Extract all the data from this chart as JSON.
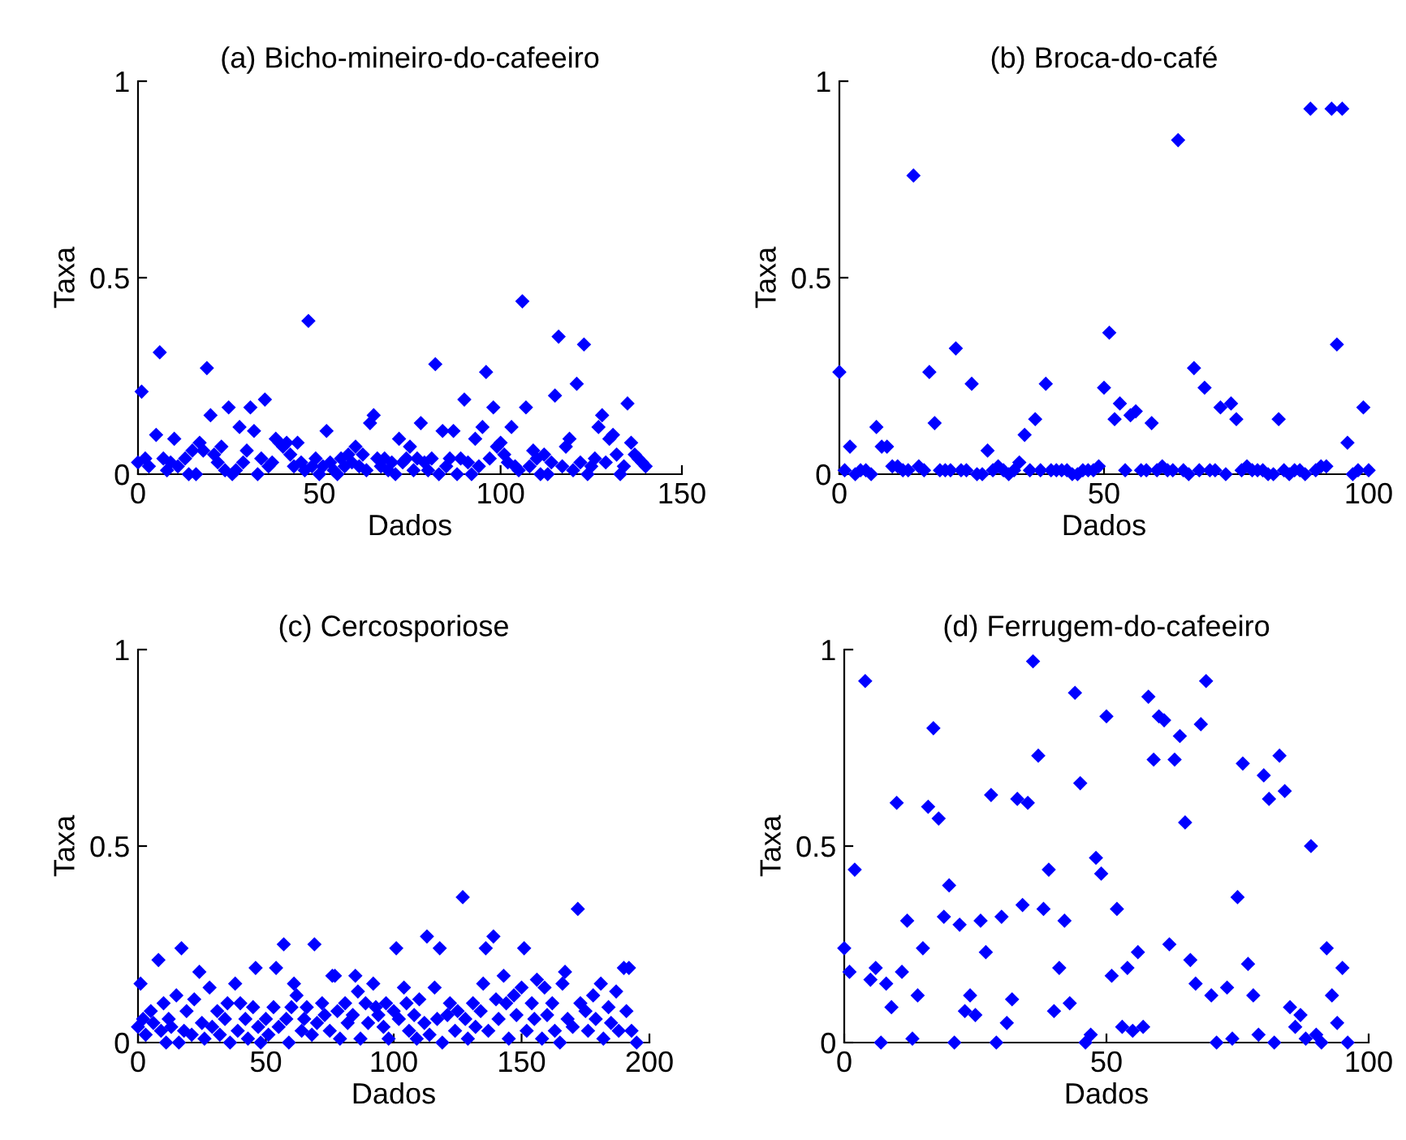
{
  "chart_data": [
    {
      "type": "scatter",
      "title": "(a) Bicho-mineiro-do-cafeeiro",
      "xlabel": "Dados",
      "ylabel": "Taxa",
      "color": "#0000ff",
      "marker": "diamond",
      "xlim": [
        0,
        150
      ],
      "ylim": [
        0,
        1
      ],
      "xticks": [
        0,
        50,
        100,
        150
      ],
      "yticks": [
        0,
        0.5,
        1
      ],
      "x": [
        0,
        1,
        2,
        3,
        5,
        6,
        7,
        8,
        9,
        10,
        11,
        13,
        14,
        15,
        16,
        17,
        18,
        19,
        20,
        21,
        22,
        23,
        24,
        25,
        26,
        27,
        28,
        29,
        30,
        31,
        32,
        33,
        34,
        35,
        36,
        37,
        38,
        39,
        40,
        41,
        42,
        43,
        44,
        45,
        46,
        47,
        48,
        49,
        50,
        51,
        52,
        53,
        54,
        55,
        56,
        57,
        58,
        59,
        60,
        61,
        62,
        63,
        64,
        65,
        66,
        67,
        68,
        69,
        70,
        71,
        72,
        73,
        74,
        75,
        76,
        77,
        78,
        79,
        80,
        81,
        82,
        83,
        84,
        85,
        86,
        87,
        88,
        89,
        90,
        91,
        92,
        93,
        94,
        95,
        96,
        97,
        98,
        99,
        100,
        101,
        102,
        103,
        104,
        105,
        106,
        107,
        108,
        109,
        110,
        111,
        112,
        113,
        114,
        115,
        116,
        117,
        118,
        119,
        120,
        121,
        122,
        123,
        124,
        125,
        126,
        127,
        128,
        129,
        130,
        131,
        132,
        133,
        134,
        135,
        136,
        137,
        138,
        139,
        140
      ],
      "values": [
        0.03,
        0.21,
        0.04,
        0.02,
        0.1,
        0.31,
        0.04,
        0.01,
        0.03,
        0.09,
        0.02,
        0.04,
        0.0,
        0.06,
        0.0,
        0.08,
        0.06,
        0.27,
        0.15,
        0.05,
        0.03,
        0.07,
        0.01,
        0.17,
        0.0,
        0.01,
        0.12,
        0.03,
        0.06,
        0.17,
        0.11,
        0.0,
        0.04,
        0.19,
        0.02,
        0.03,
        0.09,
        0.08,
        0.07,
        0.08,
        0.05,
        0.02,
        0.08,
        0.03,
        0.01,
        0.39,
        0.02,
        0.04,
        0.0,
        0.02,
        0.11,
        0.03,
        0.01,
        0.0,
        0.04,
        0.02,
        0.05,
        0.03,
        0.07,
        0.02,
        0.05,
        0.01,
        0.13,
        0.15,
        0.04,
        0.02,
        0.04,
        0.01,
        0.03,
        0.0,
        0.09,
        0.03,
        0.04,
        0.07,
        0.01,
        0.04,
        0.13,
        0.03,
        0.01,
        0.04,
        0.28,
        0.0,
        0.11,
        0.02,
        0.04,
        0.11,
        0.0,
        0.04,
        0.19,
        0.03,
        0.0,
        0.09,
        0.02,
        0.12,
        0.26,
        0.04,
        0.17,
        0.07,
        0.08,
        0.05,
        0.03,
        0.12,
        0.02,
        0.01,
        0.44,
        0.17,
        0.02,
        0.06,
        0.04,
        0.0,
        0.05,
        0.0,
        0.03,
        0.2,
        0.35,
        0.02,
        0.07,
        0.09,
        0.01,
        0.23,
        0.03,
        0.33,
        0.0,
        0.02,
        0.04,
        0.12,
        0.15,
        0.03,
        0.09,
        0.1,
        0.05,
        0.0,
        0.02,
        0.18,
        0.08,
        0.05,
        0.04,
        0.03,
        0.02
      ]
    },
    {
      "type": "scatter",
      "title": "(b) Broca-do-café",
      "xlabel": "Dados",
      "ylabel": "Taxa",
      "color": "#0000ff",
      "marker": "diamond",
      "xlim": [
        0,
        100
      ],
      "ylim": [
        0,
        1
      ],
      "xticks": [
        0,
        50,
        100
      ],
      "yticks": [
        0,
        0.5,
        1
      ],
      "x": [
        0,
        1,
        2,
        3,
        4,
        5,
        6,
        7,
        8,
        9,
        10,
        11,
        12,
        13,
        14,
        15,
        16,
        17,
        18,
        19,
        20,
        21,
        22,
        23,
        24,
        25,
        26,
        27,
        28,
        29,
        30,
        31,
        32,
        33,
        34,
        35,
        36,
        37,
        38,
        39,
        40,
        41,
        42,
        43,
        44,
        45,
        46,
        47,
        48,
        49,
        50,
        51,
        52,
        53,
        54,
        55,
        56,
        57,
        58,
        59,
        60,
        61,
        62,
        63,
        64,
        65,
        66,
        67,
        68,
        69,
        70,
        71,
        72,
        73,
        74,
        75,
        76,
        77,
        78,
        79,
        80,
        81,
        82,
        83,
        84,
        85,
        86,
        87,
        88,
        89,
        90,
        91,
        92,
        93,
        94,
        95,
        96,
        97,
        98,
        99,
        100
      ],
      "values": [
        0.26,
        0.01,
        0.07,
        0.0,
        0.01,
        0.01,
        0.0,
        0.12,
        0.07,
        0.07,
        0.02,
        0.02,
        0.01,
        0.01,
        0.76,
        0.02,
        0.01,
        0.26,
        0.13,
        0.01,
        0.01,
        0.01,
        0.32,
        0.01,
        0.01,
        0.23,
        0.0,
        0.0,
        0.06,
        0.01,
        0.02,
        0.01,
        0.0,
        0.01,
        0.03,
        0.1,
        0.01,
        0.14,
        0.01,
        0.23,
        0.01,
        0.01,
        0.01,
        0.01,
        0.0,
        0.0,
        0.01,
        0.01,
        0.01,
        0.02,
        0.22,
        0.36,
        0.14,
        0.18,
        0.01,
        0.15,
        0.16,
        0.01,
        0.01,
        0.13,
        0.01,
        0.02,
        0.01,
        0.01,
        0.85,
        0.01,
        0.0,
        0.27,
        0.01,
        0.22,
        0.01,
        0.01,
        0.17,
        0.0,
        0.18,
        0.14,
        0.01,
        0.02,
        0.01,
        0.01,
        0.01,
        0.0,
        0.0,
        0.14,
        0.01,
        0.0,
        0.01,
        0.01,
        0.0,
        0.93,
        0.01,
        0.02,
        0.02,
        0.93,
        0.33,
        0.93,
        0.08,
        0.0,
        0.01,
        0.17,
        0.01
      ]
    },
    {
      "type": "scatter",
      "title": "(c) Cercosporiose",
      "xlabel": "Dados",
      "ylabel": "Taxa",
      "color": "#0000ff",
      "marker": "diamond",
      "xlim": [
        0,
        200
      ],
      "ylim": [
        0,
        1
      ],
      "xticks": [
        0,
        50,
        100,
        150,
        200
      ],
      "yticks": [
        0,
        0.5,
        1
      ],
      "x": [
        0,
        1,
        2,
        3,
        5,
        6,
        8,
        9,
        10,
        11,
        12,
        13,
        15,
        16,
        17,
        18,
        19,
        21,
        22,
        24,
        25,
        26,
        28,
        29,
        31,
        32,
        34,
        35,
        36,
        38,
        39,
        40,
        42,
        43,
        45,
        46,
        47,
        48,
        50,
        51,
        53,
        54,
        55,
        57,
        58,
        59,
        60,
        61,
        62,
        64,
        65,
        66,
        68,
        69,
        70,
        72,
        73,
        75,
        76,
        77,
        78,
        79,
        81,
        82,
        84,
        85,
        86,
        87,
        89,
        90,
        92,
        93,
        94,
        96,
        97,
        98,
        100,
        101,
        102,
        104,
        105,
        106,
        108,
        109,
        110,
        112,
        113,
        114,
        116,
        117,
        118,
        119,
        121,
        122,
        124,
        125,
        127,
        128,
        129,
        131,
        132,
        134,
        135,
        136,
        137,
        139,
        140,
        141,
        143,
        144,
        145,
        147,
        148,
        150,
        151,
        152,
        154,
        155,
        156,
        158,
        159,
        160,
        162,
        163,
        165,
        166,
        167,
        168,
        170,
        172,
        173,
        175,
        176,
        178,
        179,
        181,
        182,
        184,
        185,
        187,
        188,
        190,
        191,
        192,
        193,
        195
      ],
      "values": [
        0.04,
        0.15,
        0.06,
        0.02,
        0.08,
        0.05,
        0.21,
        0.03,
        0.1,
        0.0,
        0.06,
        0.04,
        0.12,
        0.0,
        0.24,
        0.03,
        0.08,
        0.02,
        0.11,
        0.18,
        0.05,
        0.01,
        0.14,
        0.04,
        0.08,
        0.02,
        0.06,
        0.1,
        0.0,
        0.15,
        0.03,
        0.1,
        0.06,
        0.01,
        0.09,
        0.19,
        0.04,
        0.0,
        0.06,
        0.02,
        0.09,
        0.19,
        0.04,
        0.25,
        0.06,
        0.0,
        0.09,
        0.15,
        0.12,
        0.03,
        0.06,
        0.09,
        0.02,
        0.25,
        0.05,
        0.1,
        0.07,
        0.03,
        0.17,
        0.17,
        0.08,
        0.01,
        0.1,
        0.05,
        0.07,
        0.17,
        0.13,
        0.01,
        0.1,
        0.05,
        0.15,
        0.09,
        0.07,
        0.04,
        0.1,
        0.01,
        0.08,
        0.24,
        0.06,
        0.14,
        0.1,
        0.03,
        0.07,
        0.01,
        0.11,
        0.05,
        0.27,
        0.02,
        0.14,
        0.06,
        0.24,
        0.0,
        0.07,
        0.1,
        0.03,
        0.08,
        0.37,
        0.06,
        0.01,
        0.1,
        0.04,
        0.08,
        0.15,
        0.24,
        0.03,
        0.27,
        0.11,
        0.06,
        0.17,
        0.1,
        0.01,
        0.12,
        0.07,
        0.14,
        0.24,
        0.03,
        0.1,
        0.06,
        0.16,
        0.01,
        0.14,
        0.07,
        0.1,
        0.03,
        0.0,
        0.15,
        0.18,
        0.06,
        0.04,
        0.34,
        0.1,
        0.08,
        0.03,
        0.12,
        0.06,
        0.15,
        0.01,
        0.09,
        0.05,
        0.13,
        0.03,
        0.19,
        0.08,
        0.19,
        0.03,
        0.0
      ]
    },
    {
      "type": "scatter",
      "title": "(d) Ferrugem-do-cafeeiro",
      "xlabel": "Dados",
      "ylabel": "Taxa",
      "color": "#0000ff",
      "marker": "diamond",
      "xlim": [
        0,
        100
      ],
      "ylim": [
        0,
        1
      ],
      "xticks": [
        0,
        50,
        100
      ],
      "yticks": [
        0,
        0.5,
        1
      ],
      "x": [
        0,
        1,
        2,
        4,
        5,
        6,
        7,
        8,
        9,
        10,
        11,
        12,
        13,
        14,
        15,
        16,
        17,
        18,
        19,
        20,
        21,
        22,
        23,
        24,
        25,
        26,
        27,
        28,
        29,
        30,
        31,
        32,
        33,
        34,
        35,
        36,
        37,
        38,
        39,
        40,
        41,
        42,
        43,
        44,
        45,
        46,
        47,
        48,
        49,
        50,
        51,
        52,
        53,
        54,
        55,
        56,
        57,
        58,
        59,
        60,
        61,
        62,
        63,
        64,
        65,
        66,
        67,
        68,
        69,
        70,
        71,
        73,
        74,
        75,
        76,
        77,
        78,
        79,
        80,
        81,
        82,
        83,
        84,
        85,
        86,
        87,
        88,
        89,
        90,
        91,
        92,
        93,
        94,
        95,
        96
      ],
      "values": [
        0.24,
        0.18,
        0.44,
        0.92,
        0.16,
        0.19,
        0.0,
        0.15,
        0.09,
        0.61,
        0.18,
        0.31,
        0.01,
        0.12,
        0.24,
        0.6,
        0.8,
        0.57,
        0.32,
        0.4,
        0.0,
        0.3,
        0.08,
        0.12,
        0.07,
        0.31,
        0.23,
        0.63,
        0.0,
        0.32,
        0.05,
        0.11,
        0.62,
        0.35,
        0.61,
        0.97,
        0.73,
        0.34,
        0.44,
        0.08,
        0.19,
        0.31,
        0.1,
        0.89,
        0.66,
        0.0,
        0.02,
        0.47,
        0.43,
        0.83,
        0.17,
        0.34,
        0.04,
        0.19,
        0.03,
        0.23,
        0.04,
        0.88,
        0.72,
        0.83,
        0.82,
        0.25,
        0.72,
        0.78,
        0.56,
        0.21,
        0.15,
        0.81,
        0.92,
        0.12,
        0.0,
        0.14,
        0.01,
        0.37,
        0.71,
        0.2,
        0.12,
        0.02,
        0.68,
        0.62,
        0.0,
        0.73,
        0.64,
        0.09,
        0.04,
        0.07,
        0.01,
        0.5,
        0.02,
        0.0,
        0.24,
        0.12,
        0.05,
        0.19,
        0.0
      ]
    }
  ]
}
